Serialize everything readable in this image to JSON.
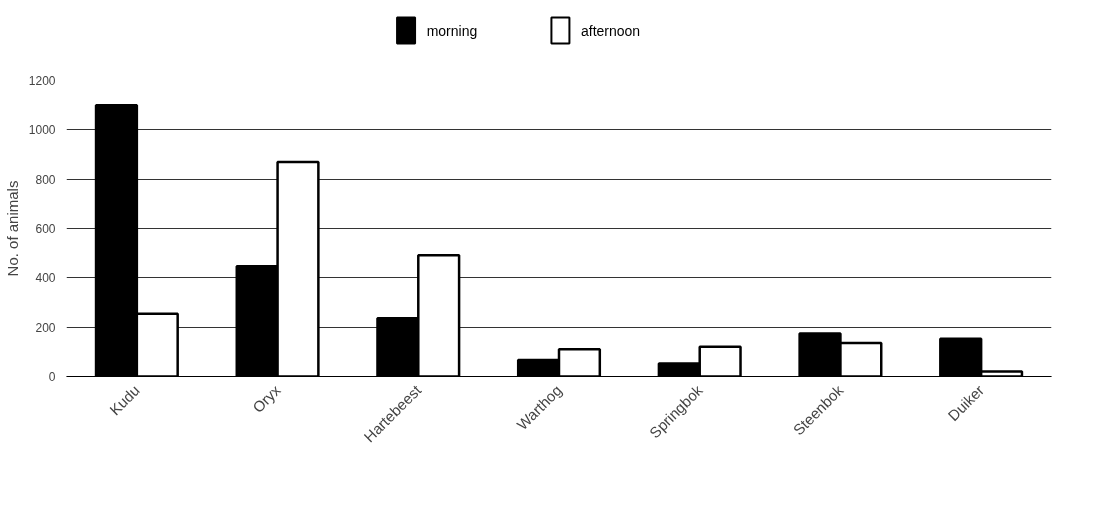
{
  "chart_data": {
    "type": "bar",
    "ylabel": "No. of animals",
    "categories": [
      "Kudu",
      "Oryx",
      "Hartebeest",
      "Warthog",
      "Springbok",
      "Steenbok",
      "Duiker"
    ],
    "series": [
      {
        "name": "morning",
        "color": "#000000",
        "values": [
          1100,
          447,
          236,
          67,
          53,
          174,
          153
        ]
      },
      {
        "name": "afternoon",
        "color": "#ffffff",
        "values": [
          254,
          870,
          492,
          110,
          121,
          136,
          20
        ]
      }
    ],
    "ylim": [
      0,
      1200
    ],
    "yticks": [
      0,
      200,
      400,
      600,
      800,
      1000,
      1200
    ],
    "grid": "y",
    "legend": "top"
  }
}
